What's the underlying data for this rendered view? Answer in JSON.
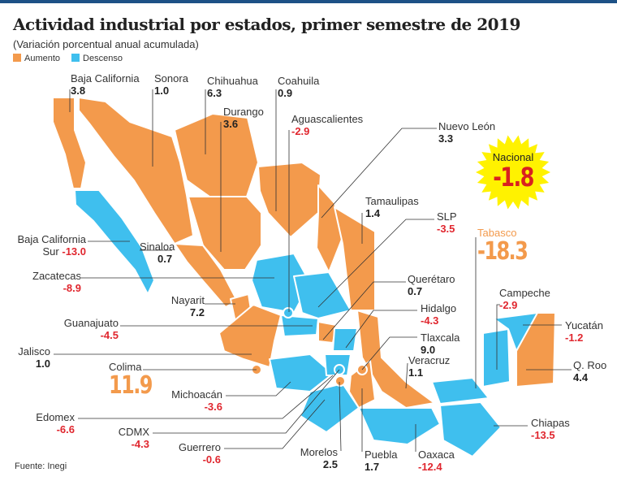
{
  "header": {
    "title": "Actividad industrial por estados, primer semestre de 2019",
    "subtitle": "(Variación porcentual anual acumulada)"
  },
  "legend": [
    {
      "label": "Aumento",
      "color": "#f39a4c"
    },
    {
      "label": "Descenso",
      "color": "#3fbfee"
    }
  ],
  "colors": {
    "aumento": "#f39a4c",
    "descenso": "#3fbfee",
    "negative_text": "#e0262e",
    "star": "#fff200"
  },
  "national": {
    "label": "Nacional",
    "value": "-1.8"
  },
  "states": {
    "bc": {
      "name": "Baja California",
      "value": "3.8",
      "trend": "aumento"
    },
    "bcs": {
      "name": "Baja California Sur",
      "name1": "Baja California",
      "name2": "Sur",
      "value": "-13.0",
      "trend": "descenso"
    },
    "son": {
      "name": "Sonora",
      "value": "1.0",
      "trend": "aumento"
    },
    "chih": {
      "name": "Chihuahua",
      "value": "6.3",
      "trend": "aumento"
    },
    "coah": {
      "name": "Coahuila",
      "value": "0.9",
      "trend": "aumento"
    },
    "dgo": {
      "name": "Durango",
      "value": "3.6",
      "trend": "aumento"
    },
    "ags": {
      "name": "Aguascalientes",
      "value": "-2.9",
      "trend": "descenso"
    },
    "nl": {
      "name": "Nuevo León",
      "value": "3.3",
      "trend": "aumento"
    },
    "tamps": {
      "name": "Tamaulipas",
      "value": "1.4",
      "trend": "aumento"
    },
    "slp": {
      "name": "SLP",
      "value": "-3.5",
      "trend": "descenso"
    },
    "tab": {
      "name": "Tabasco",
      "value": "-18.3",
      "trend": "descenso"
    },
    "sin": {
      "name": "Sinaloa",
      "value": "0.7",
      "trend": "aumento"
    },
    "zac": {
      "name": "Zacatecas",
      "value": "-8.9",
      "trend": "descenso"
    },
    "nay": {
      "name": "Nayarit",
      "value": "7.2",
      "trend": "aumento"
    },
    "qro": {
      "name": "Querétaro",
      "value": "0.7",
      "trend": "aumento"
    },
    "camp": {
      "name": "Campeche",
      "value": "-2.9",
      "trend": "descenso"
    },
    "hgo": {
      "name": "Hidalgo",
      "value": "-4.3",
      "trend": "descenso"
    },
    "yuc": {
      "name": "Yucatán",
      "value": "-1.2",
      "trend": "descenso"
    },
    "gto": {
      "name": "Guanajuato",
      "value": "-4.5",
      "trend": "descenso"
    },
    "tlax": {
      "name": "Tlaxcala",
      "value": "9.0",
      "trend": "aumento"
    },
    "jal": {
      "name": "Jalisco",
      "value": "1.0",
      "trend": "aumento"
    },
    "ver": {
      "name": "Veracruz",
      "value": "1.1",
      "trend": "aumento"
    },
    "qroo": {
      "name": "Q. Roo",
      "value": "4.4",
      "trend": "aumento"
    },
    "col": {
      "name": "Colima",
      "value": "11.9",
      "trend": "aumento"
    },
    "mich": {
      "name": "Michoacán",
      "value": "-3.6",
      "trend": "descenso"
    },
    "edomex": {
      "name": "Edomex",
      "value": "-6.6",
      "trend": "descenso"
    },
    "chis": {
      "name": "Chiapas",
      "value": "-13.5",
      "trend": "descenso"
    },
    "cdmx": {
      "name": "CDMX",
      "value": "-4.3",
      "trend": "descenso"
    },
    "gro": {
      "name": "Guerrero",
      "value": "-0.6",
      "trend": "descenso"
    },
    "mor": {
      "name": "Morelos",
      "value": "2.5",
      "trend": "aumento"
    },
    "pue": {
      "name": "Puebla",
      "value": "1.7",
      "trend": "aumento"
    },
    "oax": {
      "name": "Oaxaca",
      "value": "-12.4",
      "trend": "descenso"
    }
  },
  "source": "Fuente: Inegi"
}
